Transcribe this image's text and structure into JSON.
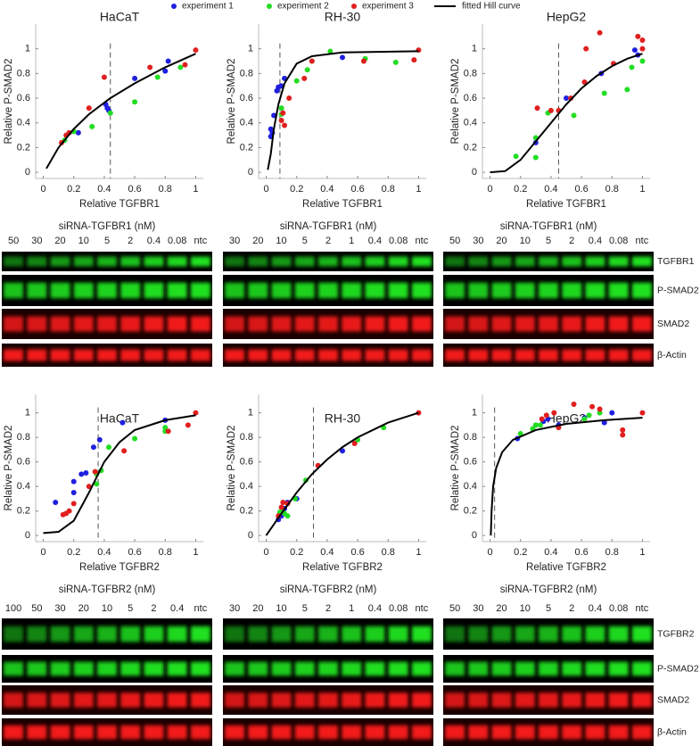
{
  "legend": [
    {
      "name": "experiment 1",
      "color": "#1f1fe0"
    },
    {
      "name": "experiment 2",
      "color": "#22dd22"
    },
    {
      "name": "experiment 3",
      "color": "#e01f1f"
    },
    {
      "name": "fitted Hill curve",
      "color": "#000000"
    }
  ],
  "chart_data": [
    {
      "type": "scatter",
      "title": "HaCaT",
      "x_label": "Relative TGFBR1",
      "y_label": "Relative P-SMAD2",
      "xlim": [
        -0.05,
        1.05
      ],
      "ylim": [
        -0.05,
        1.2
      ],
      "xticks": [
        0,
        0.2,
        0.4,
        0.6,
        0.8,
        1
      ],
      "yticks": [
        0,
        0.2,
        0.4,
        0.6,
        0.8,
        1
      ],
      "vline": 0.44,
      "series": [
        {
          "x": [
            0.23,
            0.41,
            0.42,
            0.43,
            0.6,
            0.8,
            0.82
          ],
          "values": [
            0.32,
            0.55,
            0.52,
            0.5,
            0.76,
            0.82,
            0.9
          ]
        },
        {
          "x": [
            0.14,
            0.2,
            0.32,
            0.44,
            0.6,
            0.75,
            0.9
          ],
          "values": [
            0.26,
            0.33,
            0.37,
            0.48,
            0.57,
            0.77,
            0.85
          ]
        },
        {
          "x": [
            0.12,
            0.15,
            0.17,
            0.3,
            0.4,
            0.7,
            0.93,
            1
          ],
          "values": [
            0.24,
            0.3,
            0.32,
            0.52,
            0.77,
            0.85,
            0.87,
            0.99
          ]
        },
        {
          "x": [
            0.02,
            0.1,
            0.2,
            0.3,
            0.44,
            0.6,
            0.8,
            1
          ],
          "values": [
            0.03,
            0.2,
            0.35,
            0.47,
            0.6,
            0.72,
            0.85,
            0.96
          ]
        }
      ]
    },
    {
      "type": "scatter",
      "title": "RH-30",
      "x_label": "Relative TGFBR1",
      "y_label": "Relative P-SMAD2",
      "xlim": [
        -0.05,
        1.05
      ],
      "ylim": [
        -0.05,
        1.2
      ],
      "xticks": [
        0,
        0.2,
        0.4,
        0.6,
        0.8,
        1
      ],
      "yticks": [
        0,
        0.2,
        0.4,
        0.6,
        0.8,
        1
      ],
      "vline": 0.09,
      "series": [
        {
          "x": [
            0.03,
            0.04,
            0.03,
            0.05,
            0.07,
            0.08,
            0.1,
            0.12,
            0.5
          ],
          "values": [
            0.35,
            0.32,
            0.29,
            0.46,
            0.66,
            0.69,
            0.7,
            0.76,
            0.93
          ]
        },
        {
          "x": [
            0.1,
            0.1,
            0.2,
            0.27,
            0.3,
            0.42,
            0.65,
            0.85
          ],
          "values": [
            0.52,
            0.47,
            0.74,
            0.83,
            0.9,
            0.98,
            0.92,
            0.89
          ]
        },
        {
          "x": [
            0.1,
            0.11,
            0.12,
            0.15,
            0.25,
            0.3,
            0.64,
            0.97,
            1
          ],
          "values": [
            0.42,
            0.48,
            0.38,
            0.6,
            0.76,
            0.9,
            0.9,
            0.91,
            0.99
          ]
        },
        {
          "x": [
            0.01,
            0.03,
            0.05,
            0.08,
            0.12,
            0.2,
            0.3,
            0.5,
            1
          ],
          "values": [
            0.02,
            0.15,
            0.35,
            0.55,
            0.72,
            0.88,
            0.94,
            0.97,
            0.98
          ]
        }
      ]
    },
    {
      "type": "scatter",
      "title": "HepG2",
      "x_label": "Relative TGFBR1",
      "y_label": "Relative P-SMAD2",
      "xlim": [
        -0.05,
        1.05
      ],
      "ylim": [
        -0.05,
        1.2
      ],
      "xticks": [
        0,
        0.2,
        0.4,
        0.6,
        0.8,
        1
      ],
      "yticks": [
        0,
        0.2,
        0.4,
        0.6,
        0.8,
        1
      ],
      "vline": 0.45,
      "series": [
        {
          "x": [
            0.3,
            0.5,
            0.73,
            0.95,
            0.97
          ],
          "values": [
            0.24,
            0.6,
            0.8,
            0.99,
            0.95
          ]
        },
        {
          "x": [
            0.17,
            0.3,
            0.3,
            0.38,
            0.55,
            0.75,
            0.9,
            0.93,
            1
          ],
          "values": [
            0.13,
            0.28,
            0.12,
            0.48,
            0.46,
            0.64,
            0.67,
            0.85,
            0.9
          ]
        },
        {
          "x": [
            0.31,
            0.4,
            0.45,
            0.53,
            0.62,
            0.63,
            0.72,
            0.81,
            0.97,
            1,
            1
          ],
          "values": [
            0.52,
            0.5,
            0.5,
            0.6,
            0.73,
            1.0,
            1.13,
            0.88,
            1.1,
            1.07,
            1.0
          ]
        },
        {
          "x": [
            0,
            0.1,
            0.2,
            0.3,
            0.4,
            0.5,
            0.6,
            0.7,
            0.8,
            0.9,
            1
          ],
          "values": [
            0,
            0.01,
            0.1,
            0.25,
            0.4,
            0.55,
            0.68,
            0.78,
            0.86,
            0.92,
            0.96
          ]
        }
      ]
    },
    {
      "type": "scatter",
      "title": "HaCaT",
      "x_label": "Relative TGFBR2",
      "y_label": "Relative P-SMAD2",
      "xlim": [
        -0.05,
        1.05
      ],
      "ylim": [
        -0.05,
        1.15
      ],
      "xticks": [
        0,
        0.2,
        0.4,
        0.6,
        0.8,
        1
      ],
      "yticks": [
        0,
        0.2,
        0.4,
        0.6,
        0.8,
        1
      ],
      "vline": 0.36,
      "series": [
        {
          "x": [
            0.08,
            0.2,
            0.2,
            0.25,
            0.28,
            0.33,
            0.37,
            0.52,
            0.8
          ],
          "values": [
            0.27,
            0.35,
            0.44,
            0.5,
            0.51,
            0.72,
            0.78,
            0.92,
            0.94
          ]
        },
        {
          "x": [
            0.35,
            0.35,
            0.38,
            0.43,
            0.6,
            0.8,
            0.8
          ],
          "values": [
            0.42,
            0.5,
            0.53,
            0.72,
            0.79,
            0.88,
            0.85
          ]
        },
        {
          "x": [
            0.13,
            0.15,
            0.17,
            0.2,
            0.3,
            0.34,
            0.53,
            0.82,
            0.95,
            1
          ],
          "values": [
            0.17,
            0.18,
            0.2,
            0.26,
            0.4,
            0.52,
            0.69,
            0.85,
            0.9,
            1.0
          ]
        },
        {
          "x": [
            0,
            0.1,
            0.2,
            0.3,
            0.4,
            0.5,
            0.6,
            0.8,
            1
          ],
          "values": [
            0.02,
            0.03,
            0.12,
            0.35,
            0.6,
            0.76,
            0.86,
            0.94,
            0.98
          ]
        }
      ]
    },
    {
      "type": "scatter",
      "title": "RH-30",
      "x_label": "Relative TGFBR2",
      "y_label": "Relative P-SMAD2",
      "xlim": [
        -0.05,
        1.05
      ],
      "ylim": [
        -0.05,
        1.15
      ],
      "xticks": [
        0,
        0.2,
        0.4,
        0.6,
        0.8,
        1
      ],
      "yticks": [
        0,
        0.2,
        0.4,
        0.6,
        0.8,
        1
      ],
      "vline": 0.31,
      "series": [
        {
          "x": [
            0.08,
            0.1,
            0.12,
            0.14,
            0.2,
            0.5
          ],
          "values": [
            0.13,
            0.16,
            0.22,
            0.27,
            0.3,
            0.69
          ]
        },
        {
          "x": [
            0.09,
            0.1,
            0.12,
            0.14,
            0.19,
            0.26,
            0.6,
            0.77
          ],
          "values": [
            0.19,
            0.2,
            0.18,
            0.16,
            0.3,
            0.45,
            0.78,
            0.88
          ]
        },
        {
          "x": [
            0.08,
            0.1,
            0.11,
            0.14,
            0.34,
            0.58,
            1
          ],
          "values": [
            0.16,
            0.23,
            0.27,
            0.26,
            0.57,
            0.75,
            1.0
          ]
        },
        {
          "x": [
            0,
            0.1,
            0.2,
            0.3,
            0.4,
            0.5,
            0.6,
            0.8,
            1
          ],
          "values": [
            0,
            0.18,
            0.35,
            0.5,
            0.62,
            0.72,
            0.8,
            0.92,
            1.0
          ]
        }
      ]
    },
    {
      "type": "scatter",
      "title": "HepG2",
      "x_label": "Relative TGFBR2",
      "y_label": "Relative P-SMAD2",
      "xlim": [
        -0.05,
        1.05
      ],
      "ylim": [
        -0.05,
        1.15
      ],
      "xticks": [
        0,
        0.2,
        0.4,
        0.6,
        0.8,
        1
      ],
      "yticks": [
        0,
        0.2,
        0.4,
        0.6,
        0.8,
        1
      ],
      "vline": 0.03,
      "series": [
        {
          "x": [
            0.18,
            0.3,
            0.35,
            0.38,
            0.45,
            0.62,
            0.75,
            0.8
          ],
          "values": [
            0.79,
            0.9,
            0.93,
            0.95,
            0.9,
            0.96,
            0.92,
            1.0
          ]
        },
        {
          "x": [
            0.2,
            0.28,
            0.3,
            0.33,
            0.62,
            0.65,
            0.72
          ],
          "values": [
            0.83,
            0.87,
            0.9,
            0.9,
            0.95,
            0.98,
            1.0
          ]
        },
        {
          "x": [
            0.34,
            0.37,
            0.42,
            0.45,
            0.55,
            0.67,
            0.72,
            0.87,
            0.87,
            1
          ],
          "values": [
            0.95,
            0.98,
            1.0,
            0.88,
            1.07,
            1.05,
            1.03,
            0.86,
            0.82,
            1.0
          ]
        },
        {
          "x": [
            0.005,
            0.01,
            0.02,
            0.04,
            0.08,
            0.15,
            0.3,
            0.5,
            0.75,
            1
          ],
          "values": [
            0,
            0.2,
            0.4,
            0.55,
            0.68,
            0.78,
            0.86,
            0.91,
            0.94,
            0.96
          ]
        }
      ]
    }
  ],
  "blots": [
    {
      "header": "siRNA-TGFBR1 (nM)",
      "lanes": [
        "50",
        "30",
        "20",
        "10",
        "5",
        "2",
        "0.4",
        "0.08",
        "ntc"
      ]
    },
    {
      "header": "siRNA-TGFBR1 (nM)",
      "lanes": [
        "30",
        "20",
        "10",
        "5",
        "2",
        "1",
        "0.4",
        "0.08",
        "ntc"
      ]
    },
    {
      "header": "siRNA-TGFBR1 (nM)",
      "lanes": [
        "50",
        "30",
        "20",
        "10",
        "5",
        "2",
        "0.4",
        "0.08",
        "ntc"
      ]
    },
    {
      "header": "siRNA-TGFBR2 (nM)",
      "lanes": [
        "100",
        "50",
        "30",
        "20",
        "10",
        "5",
        "2",
        "0.4",
        "ntc"
      ]
    },
    {
      "header": "siRNA-TGFBR2 (nM)",
      "lanes": [
        "30",
        "20",
        "10",
        "5",
        "2",
        "1",
        "0.4",
        "0.08",
        "ntc"
      ]
    },
    {
      "header": "siRNA-TGFBR2 (nM)",
      "lanes": [
        "50",
        "30",
        "20",
        "10",
        "5",
        "2",
        "0.4",
        "0.08",
        "ntc"
      ]
    }
  ],
  "proteins": [
    [
      "TGFBR1",
      "P-SMAD2",
      "SMAD2",
      "β-Actin"
    ],
    [
      "TGFBR2",
      "P-SMAD2",
      "SMAD2",
      "β-Actin"
    ]
  ]
}
